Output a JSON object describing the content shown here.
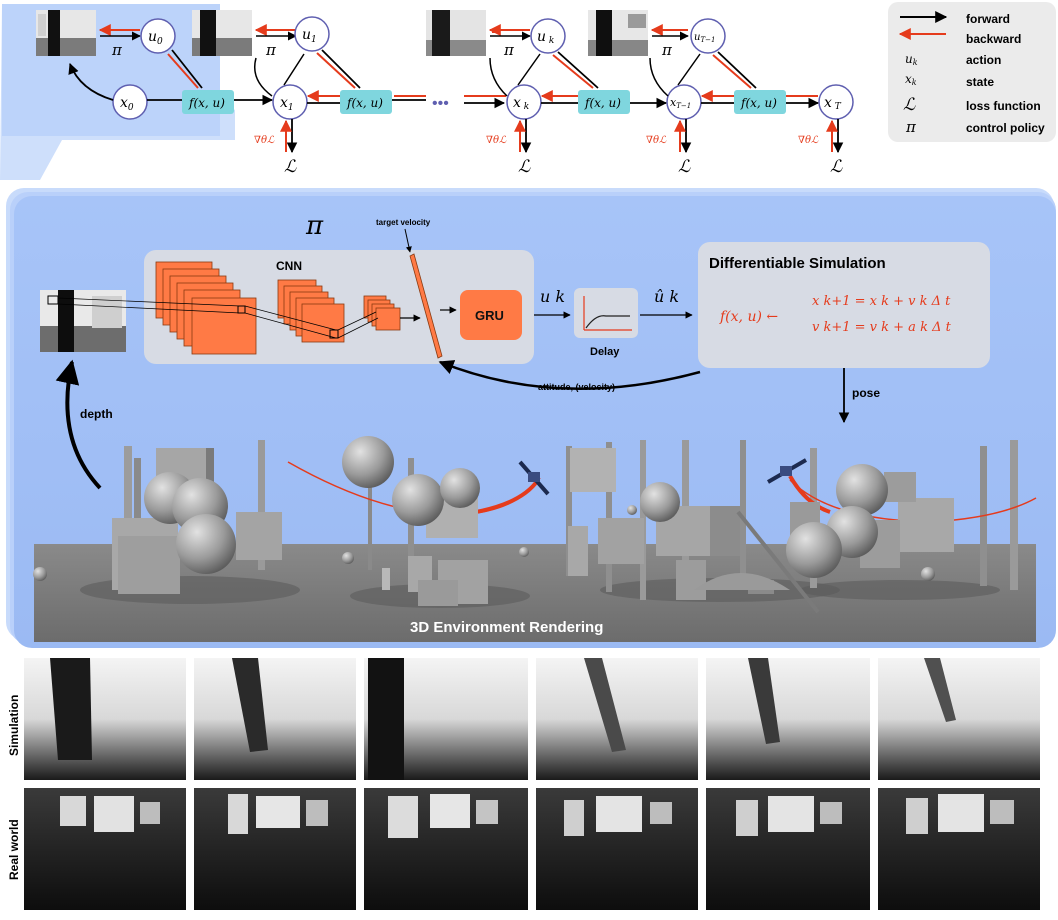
{
  "legend": {
    "items": [
      {
        "symbol": "",
        "label": "forward",
        "kind": "arrow-black"
      },
      {
        "symbol": "",
        "label": "backward",
        "kind": "arrow-red"
      },
      {
        "symbol": "u",
        "sub": "k",
        "label": "action",
        "kind": "math"
      },
      {
        "symbol": "x",
        "sub": "k",
        "label": "state",
        "kind": "math"
      },
      {
        "symbol": "ℒ",
        "sub": "",
        "label": "loss function",
        "kind": "math"
      },
      {
        "symbol": "π",
        "sub": "",
        "label": "control policy",
        "kind": "math"
      }
    ]
  },
  "unroll": {
    "pi": "π",
    "fxu": "f(x, u)",
    "dots": "•••",
    "grad": "∇θℒ",
    "loss": "ℒ",
    "states": [
      "x0",
      "x1",
      "xk",
      "xT−1",
      "xT"
    ],
    "actions": [
      "u0",
      "u1",
      "uk",
      "uT−1"
    ]
  },
  "policy": {
    "symbol": "π",
    "cnn_label": "CNN",
    "target_velocity_label": "target velocity",
    "gru_label": "GRU",
    "action_label": "u k",
    "delay_label": "Delay",
    "delayed_action_label": "û k",
    "feedback_label": "attitude, (velocity)"
  },
  "simulation": {
    "title": "Differentiable Simulation",
    "lhs": "f(x, u) ←",
    "eq1": "x k+1  = x k + v k Δ t",
    "eq2": "v k+1  = v k + a k Δ t"
  },
  "arrows": {
    "pose_label": "pose",
    "depth_label": "depth"
  },
  "environment": {
    "caption": "3D Environment Rendering"
  },
  "depth_rows": [
    {
      "label": "Simulation",
      "count": 6
    },
    {
      "label": "Real world",
      "count": 6
    }
  ],
  "colors": {
    "accent_blue": "#a9c6f7",
    "panel_blue": "#9fbff6",
    "teal": "#7fd6de",
    "orange": "#ff7a45",
    "red": "#e53b1c",
    "node_stroke": "#5f5fb0",
    "gray_box": "#d9dde6"
  }
}
